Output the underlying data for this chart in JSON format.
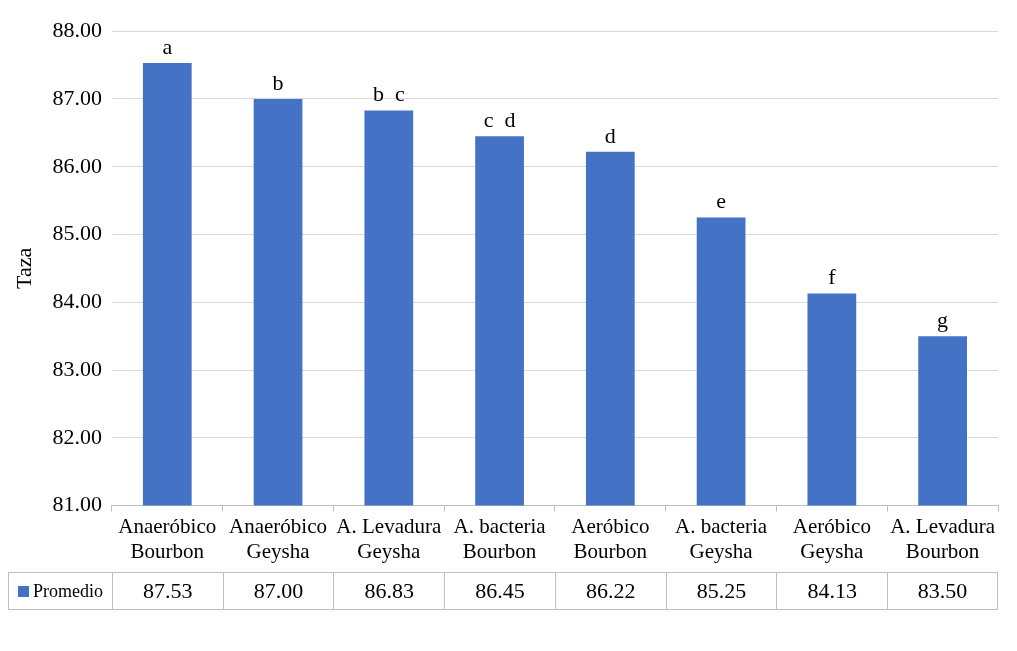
{
  "chart_data": {
    "type": "bar",
    "ylabel": "Taza",
    "categories": [
      "Anaeróbico Bourbon",
      "Anaeróbico Geysha",
      "A. Levadura Geysha",
      "A. bacteria Bourbon",
      "Aeróbico Bourbon",
      "A. bacteria Geysha",
      "Aeróbico Geysha",
      "A. Levadura Bourbon"
    ],
    "series": [
      {
        "name": "Promedio",
        "color": "#4472c4",
        "values": [
          87.53,
          87.0,
          86.83,
          86.45,
          86.22,
          85.25,
          84.13,
          83.5
        ],
        "value_labels": [
          "87.53",
          "87.00",
          "86.83",
          "86.45",
          "86.22",
          "85.25",
          "84.13",
          "83.50"
        ]
      }
    ],
    "ylim": [
      81,
      88
    ],
    "yticks": [
      {
        "value": 81,
        "label": "81.00"
      },
      {
        "value": 82,
        "label": "82.00"
      },
      {
        "value": 83,
        "label": "83.00"
      },
      {
        "value": 84,
        "label": "84.00"
      },
      {
        "value": 85,
        "label": "85.00"
      },
      {
        "value": 86,
        "label": "86.00"
      },
      {
        "value": 87,
        "label": "87.00"
      },
      {
        "value": 88,
        "label": "88.00"
      }
    ],
    "grid": "y",
    "legend": "bottom left",
    "annotations": [
      {
        "text": "a",
        "x": "Anaeróbico Bourbon",
        "y": 87.53
      },
      {
        "text": "b",
        "x": "Anaeróbico Geysha",
        "y": 87.0
      },
      {
        "text": "b  c",
        "x": "A. Levadura Geysha",
        "y": 86.83
      },
      {
        "text": "c  d",
        "x": "A. bacteria Bourbon",
        "y": 86.45
      },
      {
        "text": "d",
        "x": "Aeróbico Bourbon",
        "y": 86.22
      },
      {
        "text": "e",
        "x": "A. bacteria Geysha",
        "y": 85.25
      },
      {
        "text": "f",
        "x": "Aeróbico Geysha",
        "y": 84.13
      },
      {
        "text": "g",
        "x": "A. Levadura Bourbon",
        "y": 83.5
      }
    ]
  }
}
